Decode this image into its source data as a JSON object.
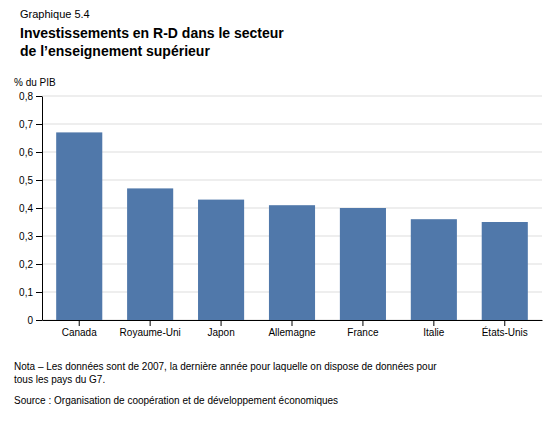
{
  "chart_data": {
    "type": "bar",
    "subtitle": "Graphique 5.4",
    "title": "Investissements en R-D dans le secteur\nde l’enseignement supérieur",
    "ylabel": "% du PIB",
    "categories": [
      "Canada",
      "Royaume-Uni",
      "Japon",
      "Allemagne",
      "France",
      "Italie",
      "États-Unis"
    ],
    "values": [
      0.67,
      0.47,
      0.43,
      0.41,
      0.4,
      0.36,
      0.35
    ],
    "color": "#5078AA",
    "ylim": [
      0,
      0.8
    ],
    "yticks": [
      0,
      {
        "value": 0.1,
        "label": "0,1"
      },
      {
        "value": 0.2,
        "label": "0,2"
      },
      {
        "value": 0.3,
        "label": "0,3"
      },
      {
        "value": 0.4,
        "label": "0,4"
      },
      {
        "value": 0.5,
        "label": "0,5"
      },
      {
        "value": 0.6,
        "label": "0,6"
      },
      {
        "value": 0.7,
        "label": "0,7"
      },
      {
        "value": 0.8,
        "label": "0,8"
      }
    ],
    "grid": true,
    "annotations": [
      "Nota – Les données sont de 2007, la dernière année pour laquelle on dispose de données pour\ntous les pays du G7.",
      "Source : Organisation de coopération et de développement économiques"
    ]
  }
}
